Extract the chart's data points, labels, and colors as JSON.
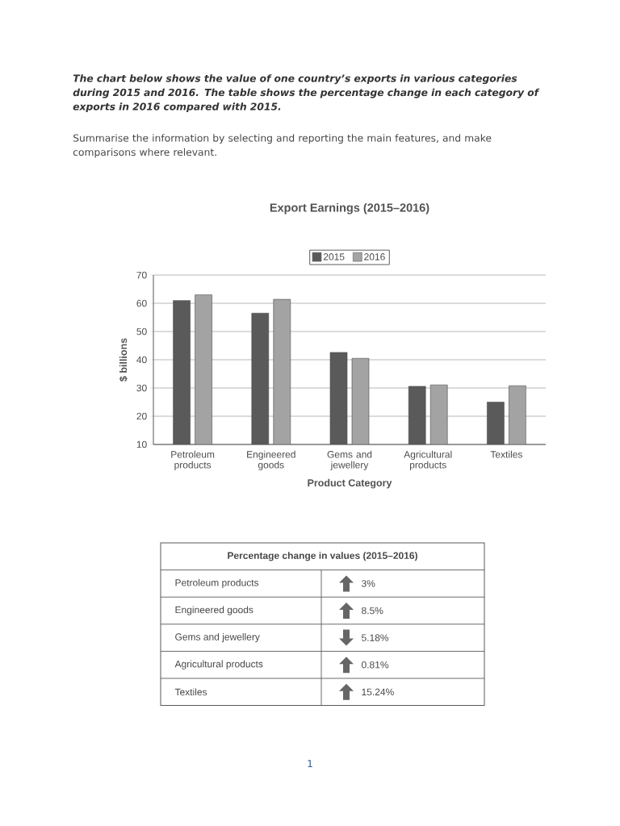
{
  "chart_data": [
    {
      "type": "bar",
      "title": "Export Earnings (2015–2016)",
      "xlabel": "Product Category",
      "ylabel": "$ billions",
      "categories": [
        "Petroleum products",
        "Engineered goods",
        "Gems and jewellery",
        "Agricultural products",
        "Textiles"
      ],
      "series": [
        {
          "name": "2015",
          "color": "#5a5a5a",
          "values": [
            61,
            56.5,
            42.6,
            30.6,
            25
          ]
        },
        {
          "name": "2016",
          "color": "#a3a3a3",
          "values": [
            63,
            61.4,
            40.5,
            31.1,
            30.8
          ]
        }
      ],
      "ylim": [
        10,
        70
      ],
      "yticks": [
        10,
        20,
        30,
        40,
        50,
        60,
        70
      ],
      "grid": "y",
      "legend": "top",
      "annotations": [
        "The chart below shows the value of one country’s exports in various categories during 2015 and 2016. The table shows the percentage change in each category of exports in 2016 compared with 2015.",
        "Summarise the information by selecting and reporting the main features, and make comparisons where relevant.",
        "1"
      ]
    },
    {
      "type": "other",
      "title": "Percentage change in values (2015–2016)",
      "categories": [
        "Petroleum products",
        "Engineered goods",
        "Gems and jewellery",
        "Agricultural products",
        "Textiles"
      ],
      "value_labels": [
        "3%",
        "8.5%",
        "5.18%",
        "0.81%",
        "15.24%"
      ]
    }
  ]
}
